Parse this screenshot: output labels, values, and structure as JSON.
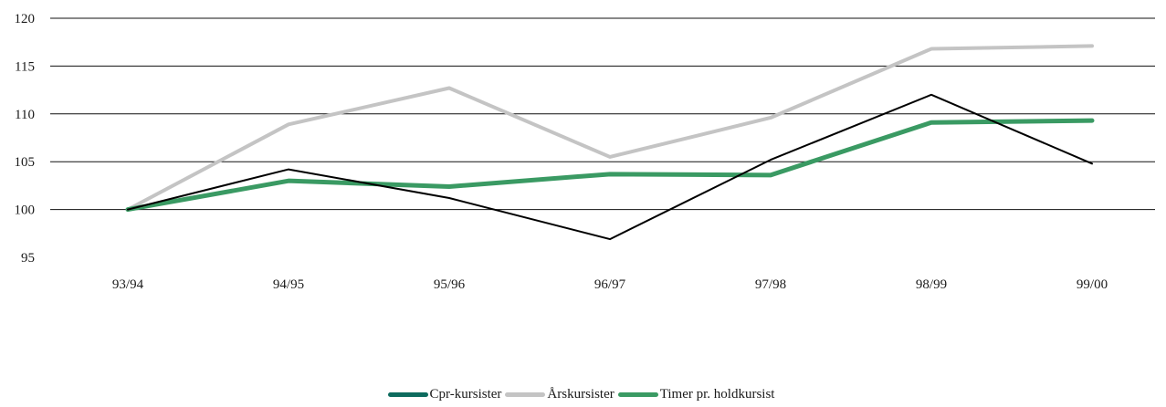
{
  "chart_data": {
    "type": "line",
    "categories": [
      "93/94",
      "94/95",
      "95/96",
      "96/97",
      "97/98",
      "98/99",
      "99/00"
    ],
    "series": [
      {
        "name": "Cpr-kursister",
        "values": [
          100,
          104.2,
          101.2,
          96.9,
          105.2,
          112.0,
          104.8
        ],
        "color": "#000000",
        "legend_color": "#0d6b5e"
      },
      {
        "name": "Årskursister",
        "values": [
          100,
          108.9,
          112.7,
          105.5,
          109.6,
          116.8,
          117.1
        ],
        "color": "#c4c4c4",
        "legend_color": "#c4c4c4"
      },
      {
        "name": "Timer pr. holdkursist",
        "values": [
          100,
          103.0,
          102.4,
          103.7,
          103.6,
          109.1,
          109.3
        ],
        "color": "#3a9a63",
        "legend_color": "#3a9a63"
      }
    ],
    "yticks": [
      "95",
      "100",
      "105",
      "110",
      "115",
      "120"
    ],
    "ylim": [
      95,
      120
    ],
    "grid": true,
    "legend_position": "bottom-center"
  }
}
